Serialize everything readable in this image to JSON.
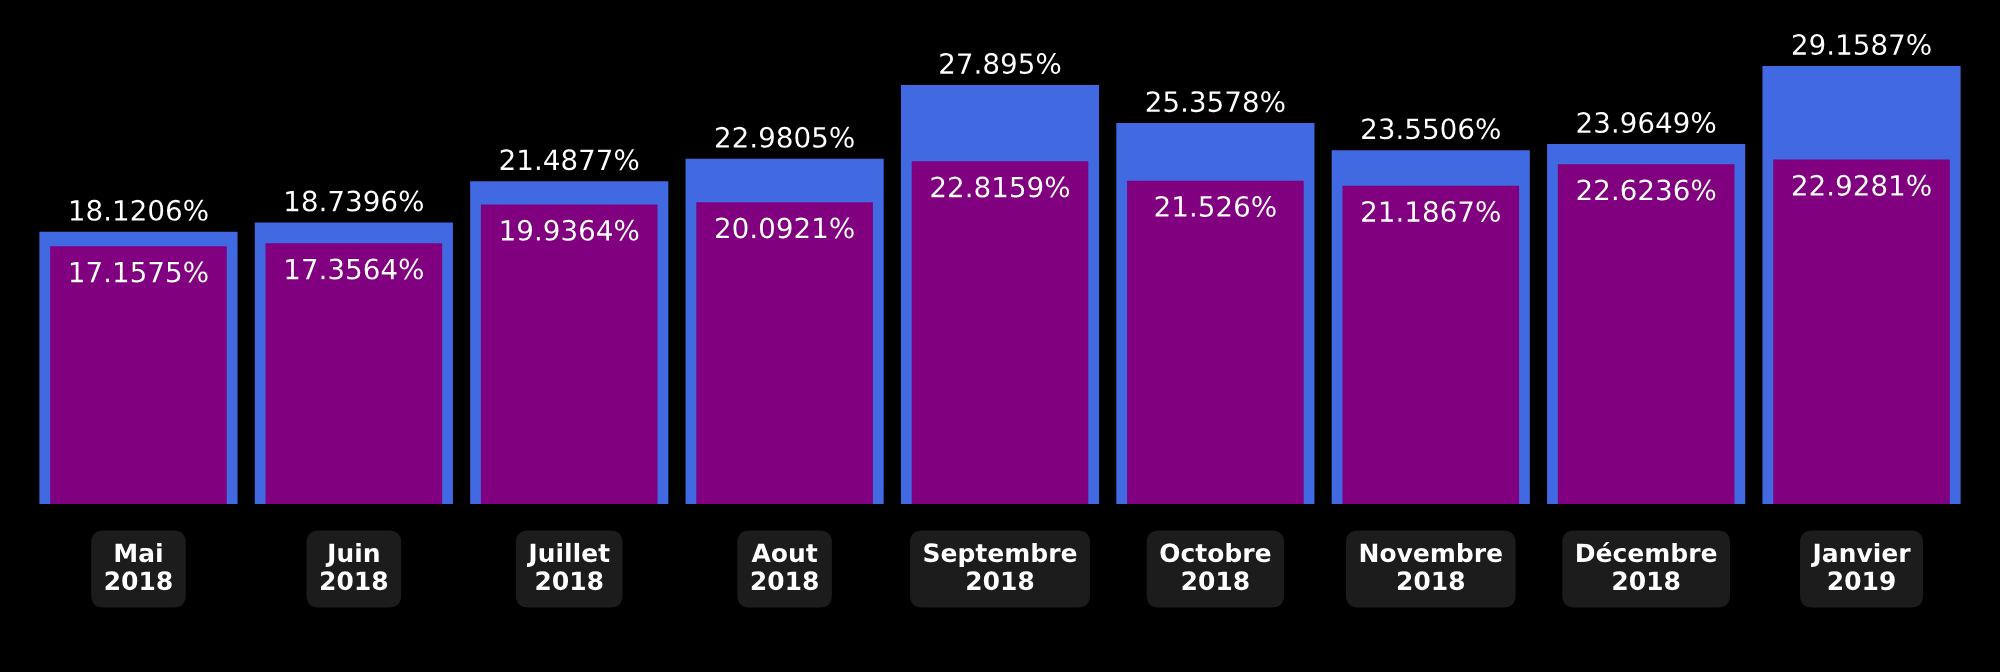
{
  "chart_data": {
    "type": "bar",
    "categories": [
      "Mai\n2018",
      "Juin\n2018",
      "Juillet\n2018",
      "Aout\n2018",
      "Septembre\n2018",
      "Octobre\n2018",
      "Novembre\n2018",
      "Décembre\n2018",
      "Janvier\n2019"
    ],
    "series": [
      {
        "color": "#4169e1",
        "values": [
          18.1206,
          18.7396,
          21.4877,
          22.9805,
          27.895,
          25.3578,
          23.5506,
          23.9649,
          29.1587
        ],
        "value_labels": [
          "18.1206%",
          "18.7396%",
          "21.4877%",
          "22.9805%",
          "27.895%",
          "25.3578%",
          "23.5506%",
          "23.9649%",
          "29.1587%"
        ]
      },
      {
        "color": "#800080",
        "values": [
          17.1575,
          17.3564,
          19.9364,
          20.0921,
          22.8159,
          21.526,
          21.1867,
          22.6236,
          22.9281
        ],
        "value_labels": [
          "17.1575%",
          "17.3564%",
          "19.9364%",
          "20.0921%",
          "22.8159%",
          "21.526%",
          "21.1867%",
          "22.6236%",
          "22.9281%"
        ]
      }
    ],
    "grid": false,
    "legend": false
  }
}
